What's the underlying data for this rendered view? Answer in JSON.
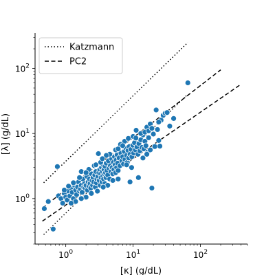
{
  "chart_data": {
    "type": "scatter",
    "title": "",
    "xlabel": "[κ]   (g/dL)",
    "ylabel": "[λ]   (g/dL)",
    "xscale": "log",
    "yscale": "log",
    "xlim": [
      0.35,
      500
    ],
    "ylim": [
      0.2,
      350
    ],
    "grid": false,
    "legend_position": "top-left",
    "x_ticks": [
      {
        "value": 1,
        "base": "10",
        "exp": "0"
      },
      {
        "value": 10,
        "base": "10",
        "exp": "1"
      },
      {
        "value": 100,
        "base": "10",
        "exp": "2"
      }
    ],
    "y_ticks": [
      {
        "value": 1,
        "base": "10",
        "exp": "0"
      },
      {
        "value": 10,
        "base": "10",
        "exp": "1"
      },
      {
        "value": 100,
        "base": "10",
        "exp": "2"
      }
    ],
    "point_color": "#1f77b4",
    "lines": [
      {
        "name": "Katzmann",
        "style": "dotted",
        "legend": true,
        "x": [
          0.47,
          65
        ],
        "y": [
          1.75,
          250
        ]
      },
      {
        "name": "Katzmann",
        "style": "dotted",
        "legend": false,
        "x": [
          0.47,
          65
        ],
        "y": [
          0.28,
          40
        ]
      },
      {
        "name": "PC2",
        "style": "dashed",
        "legend": true,
        "x": [
          0.45,
          200
        ],
        "y": [
          0.72,
          95
        ]
      },
      {
        "name": "PC2",
        "style": "dashed",
        "legend": false,
        "x": [
          0.45,
          380
        ],
        "y": [
          0.45,
          55
        ]
      }
    ],
    "points": [
      [
        0.48,
        0.7
      ],
      [
        0.55,
        0.9
      ],
      [
        0.65,
        0.34
      ],
      [
        0.75,
        3.1
      ],
      [
        0.78,
        1.1
      ],
      [
        0.85,
        1.0
      ],
      [
        0.9,
        0.85
      ],
      [
        0.95,
        1.2
      ],
      [
        1.0,
        1.05
      ],
      [
        1.05,
        0.95
      ],
      [
        1.1,
        1.3
      ],
      [
        1.15,
        1.1
      ],
      [
        1.2,
        1.45
      ],
      [
        1.25,
        1.25
      ],
      [
        1.3,
        1.0
      ],
      [
        1.35,
        1.6
      ],
      [
        1.4,
        1.35
      ],
      [
        1.45,
        1.15
      ],
      [
        1.5,
        1.5
      ],
      [
        1.55,
        1.8
      ],
      [
        1.6,
        1.3
      ],
      [
        1.65,
        1.4
      ],
      [
        1.7,
        1.6
      ],
      [
        1.75,
        1.25
      ],
      [
        1.8,
        2.0
      ],
      [
        1.85,
        1.5
      ],
      [
        1.9,
        1.7
      ],
      [
        1.95,
        1.45
      ],
      [
        2.0,
        1.6
      ],
      [
        2.05,
        2.2
      ],
      [
        2.1,
        1.35
      ],
      [
        2.15,
        1.8
      ],
      [
        2.2,
        1.55
      ],
      [
        2.25,
        2.0
      ],
      [
        2.3,
        1.7
      ],
      [
        2.35,
        1.45
      ],
      [
        2.4,
        2.4
      ],
      [
        2.45,
        1.9
      ],
      [
        2.5,
        1.6
      ],
      [
        2.55,
        2.1
      ],
      [
        2.6,
        1.8
      ],
      [
        2.65,
        3.2
      ],
      [
        2.7,
        2.3
      ],
      [
        2.75,
        1.5
      ],
      [
        2.8,
        2.6
      ],
      [
        2.85,
        1.75
      ],
      [
        2.9,
        2.0
      ],
      [
        2.95,
        1.3
      ],
      [
        3.0,
        2.2
      ],
      [
        3.05,
        4.9
      ],
      [
        3.1,
        2.5
      ],
      [
        3.15,
        1.9
      ],
      [
        3.2,
        2.8
      ],
      [
        3.25,
        1.6
      ],
      [
        3.3,
        2.4
      ],
      [
        3.35,
        2.1
      ],
      [
        3.4,
        3.0
      ],
      [
        3.45,
        1.8
      ],
      [
        3.5,
        2.6
      ],
      [
        3.55,
        2.2
      ],
      [
        3.6,
        3.3
      ],
      [
        3.65,
        2.0
      ],
      [
        3.7,
        2.8
      ],
      [
        3.75,
        2.4
      ],
      [
        3.8,
        1.7
      ],
      [
        3.85,
        3.1
      ],
      [
        3.9,
        2.5
      ],
      [
        3.95,
        2.1
      ],
      [
        4.0,
        3.5
      ],
      [
        4.1,
        2.7
      ],
      [
        4.2,
        2.3
      ],
      [
        4.3,
        3.8
      ],
      [
        4.4,
        2.9
      ],
      [
        4.5,
        2.0
      ],
      [
        4.6,
        3.2
      ],
      [
        4.7,
        2.6
      ],
      [
        4.8,
        4.1
      ],
      [
        4.9,
        3.0
      ],
      [
        5.0,
        2.4
      ],
      [
        5.1,
        3.6
      ],
      [
        5.2,
        2.8
      ],
      [
        5.3,
        4.4
      ],
      [
        5.4,
        3.3
      ],
      [
        5.5,
        2.5
      ],
      [
        5.6,
        3.9
      ],
      [
        5.7,
        3.0
      ],
      [
        5.8,
        4.7
      ],
      [
        5.9,
        3.5
      ],
      [
        6.0,
        2.7
      ],
      [
        6.2,
        4.2
      ],
      [
        6.4,
        3.2
      ],
      [
        6.6,
        5.0
      ],
      [
        6.8,
        3.8
      ],
      [
        7.0,
        4.4
      ],
      [
        7.2,
        3.4
      ],
      [
        7.4,
        5.3
      ],
      [
        7.6,
        4.0
      ],
      [
        7.8,
        6.0
      ],
      [
        8.0,
        4.6
      ],
      [
        8.2,
        3.6
      ],
      [
        8.4,
        5.5
      ],
      [
        8.6,
        4.2
      ],
      [
        8.8,
        6.3
      ],
      [
        9.0,
        4.8
      ],
      [
        9.3,
        5.7
      ],
      [
        9.6,
        4.4
      ],
      [
        9.9,
        6.6
      ],
      [
        10.2,
        5.0
      ],
      [
        10.5,
        7.2
      ],
      [
        10.8,
        5.6
      ],
      [
        11.1,
        11.2
      ],
      [
        11.4,
        6.2
      ],
      [
        11.8,
        4.8
      ],
      [
        12.2,
        7.0
      ],
      [
        12.6,
        5.4
      ],
      [
        13.0,
        8.0
      ],
      [
        13.5,
        6.1
      ],
      [
        14.0,
        9.5
      ],
      [
        14.5,
        5.8
      ],
      [
        15.0,
        7.6
      ],
      [
        15.5,
        6.5
      ],
      [
        16.0,
        12.5
      ],
      [
        16.5,
        5.2
      ],
      [
        17.0,
        8.6
      ],
      [
        18.0,
        14.0
      ],
      [
        19.0,
        1.45
      ],
      [
        20.0,
        9.8
      ],
      [
        21.0,
        6.3
      ],
      [
        22.0,
        23.0
      ],
      [
        23.0,
        11.5
      ],
      [
        24.0,
        7.8
      ],
      [
        25.0,
        6.4
      ],
      [
        26.0,
        16.0
      ],
      [
        28.0,
        19.0
      ],
      [
        30.0,
        20.5
      ],
      [
        32.0,
        21.0
      ],
      [
        35.0,
        13.0
      ],
      [
        40.0,
        17.0
      ],
      [
        65.0,
        60.0
      ],
      [
        12.0,
        2.1
      ],
      [
        9.0,
        1.8
      ],
      [
        2.2,
        2.8
      ],
      [
        1.7,
        2.6
      ],
      [
        6.5,
        6.8
      ],
      [
        5.5,
        5.6
      ],
      [
        4.5,
        4.8
      ],
      [
        3.3,
        3.6
      ],
      [
        7.5,
        7.6
      ],
      [
        8.5,
        8.4
      ],
      [
        10.0,
        9.0
      ],
      [
        11.0,
        8.5
      ],
      [
        13.0,
        10.0
      ],
      [
        15.0,
        10.5
      ],
      [
        6.0,
        5.8
      ],
      [
        7.0,
        6.5
      ],
      [
        4.0,
        4.6
      ],
      [
        3.5,
        4.1
      ],
      [
        2.8,
        3.3
      ],
      [
        2.0,
        2.5
      ],
      [
        1.6,
        2.1
      ],
      [
        1.3,
        1.75
      ],
      [
        1.1,
        1.55
      ],
      [
        0.95,
        1.35
      ],
      [
        17.0,
        11.0
      ],
      [
        19.0,
        12.0
      ],
      [
        24.0,
        15.0
      ],
      [
        9.5,
        3.0
      ],
      [
        8.0,
        3.3
      ],
      [
        14.0,
        4.2
      ],
      [
        16.0,
        4.8
      ],
      [
        18.0,
        5.6
      ],
      [
        6.0,
        2.0
      ],
      [
        5.0,
        1.9
      ],
      [
        4.2,
        1.6
      ],
      [
        3.6,
        1.5
      ],
      [
        2.4,
        1.2
      ],
      [
        2.0,
        1.05
      ],
      [
        1.7,
        1.0
      ],
      [
        1.4,
        0.9
      ],
      [
        1.2,
        0.85
      ]
    ]
  }
}
